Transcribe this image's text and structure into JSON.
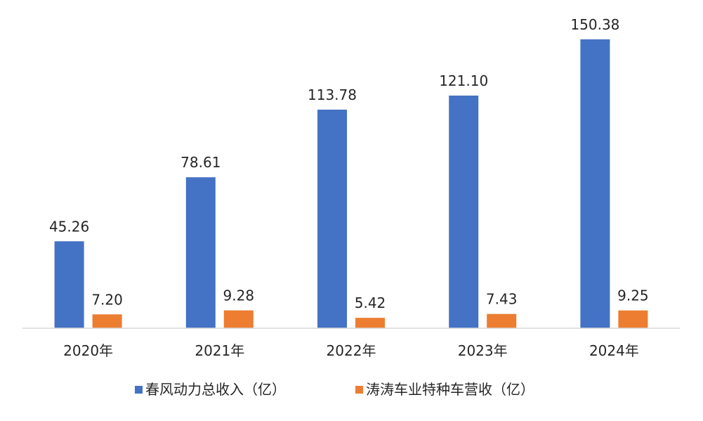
{
  "chart_data": {
    "type": "bar",
    "categories": [
      "2020年",
      "2021年",
      "2022年",
      "2023年",
      "2024年"
    ],
    "series": [
      {
        "name": "春风动力总收入（亿）",
        "color": "#4472C4",
        "values": [
          45.26,
          78.61,
          113.78,
          121.1,
          150.38
        ],
        "labels": [
          "45.26",
          "78.61",
          "113.78",
          "121.10",
          "150.38"
        ]
      },
      {
        "name": "涛涛车业特种车营收（亿）",
        "color": "#ED7D31",
        "values": [
          7.2,
          9.28,
          5.42,
          7.43,
          9.25
        ],
        "labels": [
          "7.20",
          "9.28",
          "5.42",
          "7.43",
          "9.25"
        ]
      }
    ],
    "ylim": [
      0,
      150.38
    ],
    "grid": false,
    "legend_position": "bottom",
    "axis_color": "#D9D9D9"
  }
}
